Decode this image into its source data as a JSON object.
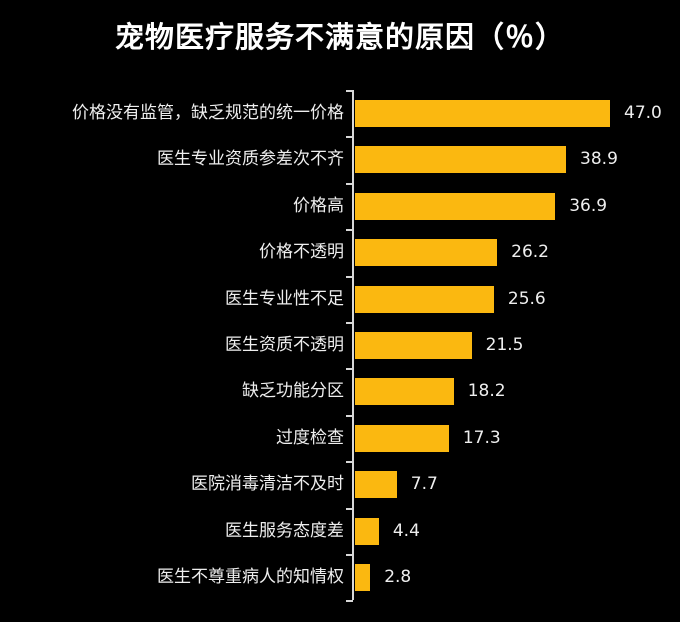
{
  "title": "宠物医疗服务不满意的原因（％）",
  "colors": {
    "background": "#000000",
    "bar": "#fbb810",
    "text": "#ffffff",
    "axis": "#d8d8d8"
  },
  "chart_data": {
    "type": "bar",
    "orientation": "horizontal",
    "title": "宠物医疗服务不满意的原因（％）",
    "xlabel": "",
    "ylabel": "",
    "unit": "%",
    "grid": false,
    "legend": null,
    "categories": [
      "价格没有监管，缺乏规范的统一价格",
      "医生专业资质参差次不齐",
      "价格高",
      "价格不透明",
      "医生专业性不足",
      "医生资质不透明",
      "缺乏功能分区",
      "过度检查",
      "医院消毒清洁不及时",
      "医生服务态度差",
      "医生不尊重病人的知情权"
    ],
    "values": [
      47.0,
      38.9,
      36.9,
      26.2,
      25.6,
      21.5,
      18.2,
      17.3,
      7.7,
      4.4,
      2.8
    ],
    "value_labels": [
      "47.0",
      "38.9",
      "36.9",
      "26.2",
      "25.6",
      "21.5",
      "18.2",
      "17.3",
      "7.7",
      "4.4",
      "2.8"
    ],
    "xlim": [
      0,
      50
    ]
  }
}
